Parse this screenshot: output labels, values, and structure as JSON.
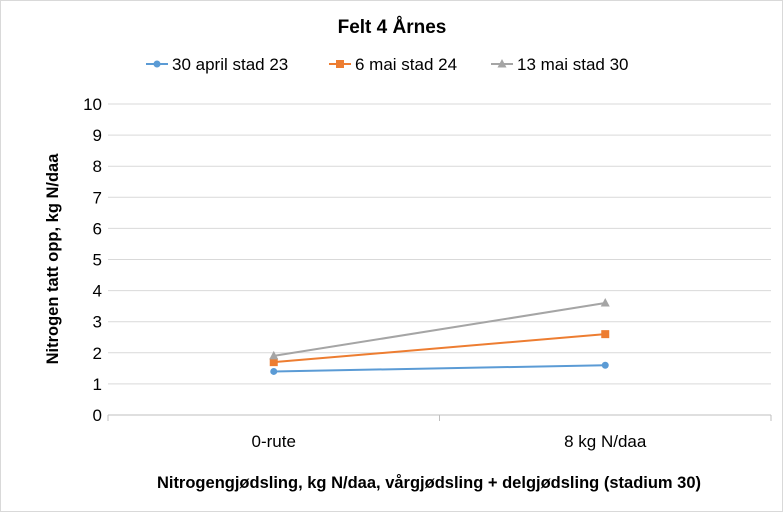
{
  "chart_data": {
    "type": "line",
    "title": "Felt 4 Årnes",
    "xlabel": "Nitrogengjødsling, kg N/daa, vårgjødsling + delgjødsling (stadium 30)",
    "ylabel": "Nitrogen tatt opp, kg N/daa",
    "categories": [
      "0-rute",
      "8 kg N/daa"
    ],
    "ylim": [
      0,
      10
    ],
    "yticks": [
      "0",
      "1",
      "2",
      "3",
      "4",
      "5",
      "6",
      "7",
      "8",
      "9",
      "10"
    ],
    "grid": true,
    "legend_position": "top",
    "series": [
      {
        "name": "30 april stad 23",
        "values": [
          1.4,
          1.6
        ],
        "color": "#5b9bd5",
        "marker": "circle"
      },
      {
        "name": "6 mai stad 24",
        "values": [
          1.7,
          2.6
        ],
        "color": "#ed7d31",
        "marker": "square"
      },
      {
        "name": "13 mai stad 30",
        "values": [
          1.9,
          3.6
        ],
        "color": "#a5a5a5",
        "marker": "triangle"
      }
    ]
  }
}
